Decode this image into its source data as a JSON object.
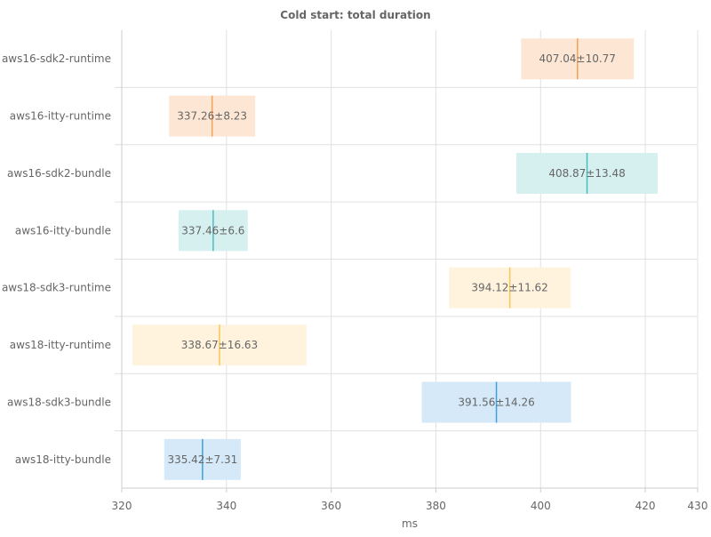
{
  "chart_data": {
    "type": "bar",
    "title": "Cold start: total duration",
    "xlabel": "ms",
    "ylabel": "",
    "xlim": [
      320,
      430
    ],
    "x_ticks": [
      320,
      340,
      360,
      380,
      400,
      420,
      430
    ],
    "grid": true,
    "legend": "none",
    "rows": [
      {
        "label": "aws16-sdk2-runtime",
        "mean": 407.04,
        "err": 10.77,
        "text": "407.04±10.77",
        "fill": "#fde7d4",
        "line": "#f4a15c"
      },
      {
        "label": "aws16-itty-runtime",
        "mean": 337.26,
        "err": 8.23,
        "text": "337.26±8.23",
        "fill": "#fde7d4",
        "line": "#f4a15c"
      },
      {
        "label": "aws16-sdk2-bundle",
        "mean": 408.87,
        "err": 13.48,
        "text": "408.87±13.48",
        "fill": "#d6efef",
        "line": "#4dbcc0"
      },
      {
        "label": "aws16-itty-bundle",
        "mean": 337.46,
        "err": 6.6,
        "text": "337.46±6.6",
        "fill": "#d6efef",
        "line": "#4dbcc0"
      },
      {
        "label": "aws18-sdk3-runtime",
        "mean": 394.12,
        "err": 11.62,
        "text": "394.12±11.62",
        "fill": "#fff3de",
        "line": "#f6c656"
      },
      {
        "label": "aws18-itty-runtime",
        "mean": 338.67,
        "err": 16.63,
        "text": "338.67±16.63",
        "fill": "#fff3de",
        "line": "#f6c656"
      },
      {
        "label": "aws18-sdk3-bundle",
        "mean": 391.56,
        "err": 14.26,
        "text": "391.56±14.26",
        "fill": "#d5e9f8",
        "line": "#3fa0dc"
      },
      {
        "label": "aws18-itty-bundle",
        "mean": 335.42,
        "err": 7.31,
        "text": "335.42±7.31",
        "fill": "#d5e9f8",
        "line": "#3fa0dc"
      }
    ]
  }
}
